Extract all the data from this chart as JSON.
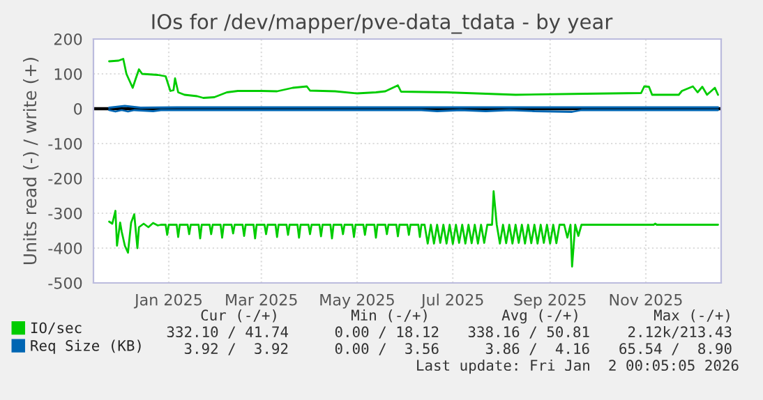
{
  "chart_data": {
    "type": "line",
    "title": "IOs for /dev/mapper/pve-data_tdata - by year",
    "ylabel": "Units read (-) / write (+)",
    "xlim": [
      "2024-11-28",
      "2026-01-02"
    ],
    "ylim": [
      -500,
      200
    ],
    "yticks": [
      -500,
      -400,
      -300,
      -200,
      -100,
      0,
      100,
      200
    ],
    "xticks": [
      {
        "value": "2025-01-15",
        "label": "Jan 2025"
      },
      {
        "value": "2025-03-15",
        "label": "Mar 2025"
      },
      {
        "value": "2025-05-15",
        "label": "May 2025"
      },
      {
        "value": "2025-07-15",
        "label": "Jul 2025"
      },
      {
        "value": "2025-09-15",
        "label": "Sep 2025"
      },
      {
        "value": "2025-11-15",
        "label": "Nov 2025"
      }
    ],
    "grid": true,
    "legend": "bottom",
    "ref_lines": [
      {
        "axis": "y",
        "value": 0,
        "color": "#000000"
      }
    ],
    "series": [
      {
        "name": "IO/sec",
        "color": "#00cc00",
        "x": [
          "2024-12-08",
          "2024-12-14",
          "2024-12-17",
          "2024-12-19",
          "2024-12-23",
          "2024-12-25",
          "2024-12-27",
          "2024-12-29",
          "2025-01-08",
          "2025-01-13",
          "2025-01-16",
          "2025-01-18",
          "2025-01-19",
          "2025-01-21",
          "2025-01-25",
          "2025-02-02",
          "2025-02-06",
          "2025-02-13",
          "2025-02-21",
          "2025-02-28",
          "2025-03-15",
          "2025-03-25",
          "2025-04-04",
          "2025-04-13",
          "2025-04-15",
          "2025-05-01",
          "2025-05-15",
          "2025-05-27",
          "2025-06-02",
          "2025-06-10",
          "2025-06-12",
          "2025-07-11",
          "2025-08-24",
          "2025-10-08",
          "2025-11-12",
          "2025-11-14",
          "2025-11-17",
          "2025-11-19",
          "2025-12-06",
          "2025-12-08",
          "2025-12-15",
          "2025-12-18",
          "2025-12-21",
          "2025-12-24",
          "2025-12-29",
          "2025-12-31"
        ],
        "values": [
          136,
          138,
          143,
          100,
          60,
          87,
          113,
          100,
          97,
          93,
          51,
          53,
          87,
          47,
          40,
          36,
          31,
          33,
          47,
          51,
          51,
          50,
          60,
          64,
          52,
          50,
          44,
          47,
          50,
          67,
          49,
          47,
          40,
          43,
          45,
          64,
          63,
          40,
          40,
          51,
          64,
          47,
          63,
          40,
          60,
          40
        ]
      },
      {
        "color": "#00cc00",
        "x": [
          "2024-12-08",
          "2024-12-10",
          "2024-12-12",
          "2024-12-13",
          "2024-12-15",
          "2024-12-16",
          "2024-12-18",
          "2024-12-20",
          "2024-12-22",
          "2024-12-24",
          "2024-12-26",
          "2024-12-27",
          "2024-12-30",
          "2025-01-02",
          "2025-01-05",
          "2025-01-08",
          "2025-01-10",
          "2025-01-13",
          "2025-01-14",
          "2025-01-15",
          "2025-01-20",
          "2025-01-21",
          "2025-01-22",
          "2025-01-27",
          "2025-01-28",
          "2025-01-29",
          "2025-02-03",
          "2025-02-04",
          "2025-02-05",
          "2025-02-10",
          "2025-02-11",
          "2025-02-12",
          "2025-02-17",
          "2025-02-18",
          "2025-02-19",
          "2025-02-24",
          "2025-02-25",
          "2025-02-26",
          "2025-03-03",
          "2025-03-04",
          "2025-03-05",
          "2025-03-10",
          "2025-03-11",
          "2025-03-12",
          "2025-03-17",
          "2025-03-18",
          "2025-03-19",
          "2025-03-24",
          "2025-03-25",
          "2025-03-26",
          "2025-03-31",
          "2025-04-01",
          "2025-04-02",
          "2025-04-07",
          "2025-04-08",
          "2025-04-09",
          "2025-04-14",
          "2025-04-15",
          "2025-04-16",
          "2025-04-21",
          "2025-04-22",
          "2025-04-23",
          "2025-04-28",
          "2025-04-29",
          "2025-04-30",
          "2025-05-05",
          "2025-05-06",
          "2025-05-07",
          "2025-05-12",
          "2025-05-13",
          "2025-05-14",
          "2025-05-19",
          "2025-05-20",
          "2025-05-21",
          "2025-05-26",
          "2025-05-27",
          "2025-05-28",
          "2025-06-02",
          "2025-06-03",
          "2025-06-04",
          "2025-06-09",
          "2025-06-10",
          "2025-06-11",
          "2025-06-16",
          "2025-06-17",
          "2025-06-18",
          "2025-06-23",
          "2025-06-24",
          "2025-06-25",
          "2025-06-27",
          "2025-06-29",
          "2025-07-01",
          "2025-07-03",
          "2025-07-05",
          "2025-07-07",
          "2025-07-09",
          "2025-07-11",
          "2025-07-13",
          "2025-07-15",
          "2025-07-17",
          "2025-07-19",
          "2025-07-21",
          "2025-07-23",
          "2025-07-25",
          "2025-07-27",
          "2025-07-29",
          "2025-07-31",
          "2025-08-02",
          "2025-08-04",
          "2025-08-06",
          "2025-08-09",
          "2025-08-10",
          "2025-08-12",
          "2025-08-14",
          "2025-08-16",
          "2025-08-18",
          "2025-08-20",
          "2025-08-22",
          "2025-08-24",
          "2025-08-26",
          "2025-08-28",
          "2025-08-30",
          "2025-09-01",
          "2025-09-03",
          "2025-09-05",
          "2025-09-07",
          "2025-09-09",
          "2025-09-11",
          "2025-09-13",
          "2025-09-15",
          "2025-09-17",
          "2025-09-19",
          "2025-09-21",
          "2025-09-24",
          "2025-09-26",
          "2025-09-28",
          "2025-09-29",
          "2025-10-01",
          "2025-10-03",
          "2025-10-05",
          "2025-11-20",
          "2025-11-21",
          "2025-11-22",
          "2025-12-31"
        ],
        "values": [
          -324,
          -330,
          -293,
          -393,
          -327,
          -353,
          -393,
          -413,
          -327,
          -303,
          -400,
          -340,
          -330,
          -340,
          -328,
          -335,
          -333,
          -333,
          -362,
          -333,
          -333,
          -368,
          -333,
          -333,
          -360,
          -333,
          -333,
          -372,
          -333,
          -333,
          -360,
          -333,
          -333,
          -370,
          -333,
          -333,
          -358,
          -333,
          -333,
          -365,
          -333,
          -333,
          -372,
          -333,
          -333,
          -360,
          -333,
          -333,
          -368,
          -333,
          -333,
          -362,
          -333,
          -333,
          -370,
          -333,
          -333,
          -360,
          -333,
          -333,
          -366,
          -333,
          -333,
          -372,
          -333,
          -333,
          -360,
          -333,
          -333,
          -368,
          -333,
          -333,
          -362,
          -333,
          -333,
          -370,
          -333,
          -333,
          -360,
          -333,
          -333,
          -366,
          -333,
          -333,
          -362,
          -333,
          -333,
          -368,
          -333,
          -333,
          -387,
          -333,
          -387,
          -333,
          -385,
          -333,
          -387,
          -333,
          -388,
          -333,
          -385,
          -333,
          -387,
          -333,
          -386,
          -333,
          -387,
          -333,
          -385,
          -333,
          -333,
          -237,
          -333,
          -387,
          -333,
          -386,
          -333,
          -387,
          -333,
          -385,
          -333,
          -387,
          -333,
          -386,
          -333,
          -387,
          -333,
          -385,
          -333,
          -387,
          -333,
          -386,
          -333,
          -333,
          -370,
          -333,
          -453,
          -333,
          -365,
          -333,
          -333,
          -330,
          -333,
          -333
        ]
      },
      {
        "name": "Req Size (KB)",
        "color": "#0066b3",
        "x": [
          "2024-12-08",
          "2024-12-18",
          "2024-12-22",
          "2024-12-28",
          "2025-01-20",
          "2025-12-31"
        ],
        "values": [
          3,
          8,
          6,
          3,
          4,
          4
        ]
      },
      {
        "color": "#0066b3",
        "x": [
          "2024-12-08",
          "2024-12-12",
          "2024-12-16",
          "2024-12-20",
          "2024-12-24",
          "2025-01-05",
          "2025-01-10",
          "2025-06-25",
          "2025-07-05",
          "2025-07-20",
          "2025-08-05",
          "2025-08-20",
          "2025-09-05",
          "2025-09-29",
          "2025-10-05",
          "2025-12-31"
        ],
        "values": [
          -4,
          -8,
          -4,
          -8,
          -4,
          -7,
          -4,
          -4,
          -7,
          -4,
          -7,
          -4,
          -7,
          -9,
          -4,
          -4
        ]
      }
    ],
    "annotations": [
      "Cur (-/+)",
      "Min (-/+)",
      "Avg (-/+)",
      "Max (-/+)",
      "332.10 / 41.74",
      "0.00 / 18.12",
      "338.16 / 50.81",
      "2.12k/213.43",
      "3.92 /  3.92",
      "0.00 /  3.56",
      "3.86 /  4.16",
      "65.54 /  8.90",
      "Last update: Fri Jan  2 00:05:05 2026"
    ]
  }
}
